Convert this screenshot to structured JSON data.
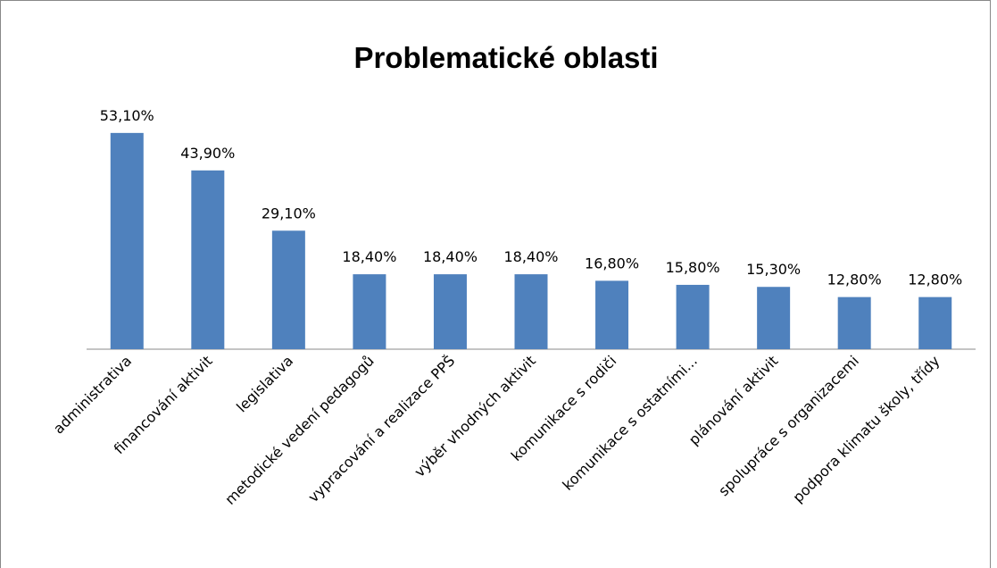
{
  "chart_data": {
    "type": "bar",
    "title": "Problematické oblasti",
    "categories": [
      "administrativa",
      "financování aktivit",
      "legislativa",
      "metodické vedení pedagogů",
      "vypracování a realizace PPŠ",
      "výběr vhodných aktivit",
      "komunikace s rodiči",
      "komunikace s ostatními...",
      "plánování aktivit",
      "spolupráce s organizacemi",
      "podpora klimatu školy, třídy"
    ],
    "values": [
      53.1,
      43.9,
      29.1,
      18.4,
      18.4,
      18.4,
      16.8,
      15.8,
      15.3,
      12.8,
      12.8
    ],
    "value_labels": [
      "53,10%",
      "43,90%",
      "29,10%",
      "18,40%",
      "18,40%",
      "18,40%",
      "16,80%",
      "15,80%",
      "15,30%",
      "12,80%",
      "12,80%"
    ],
    "color": "#4f81bd"
  }
}
